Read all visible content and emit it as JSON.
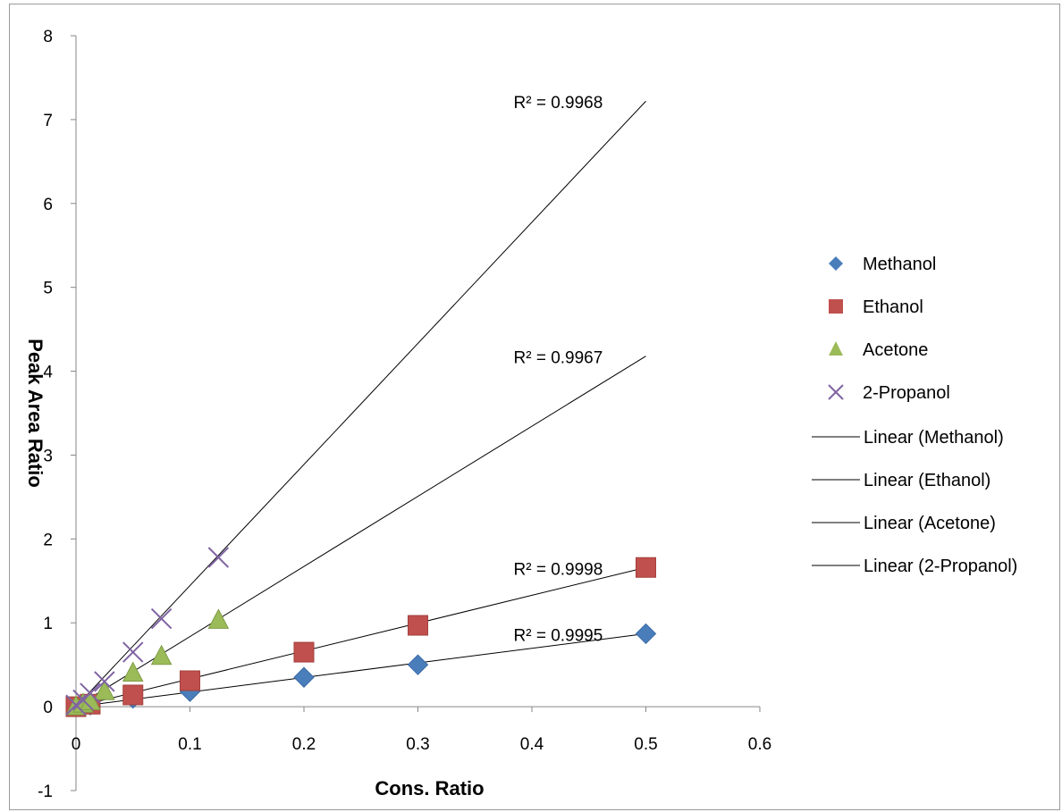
{
  "chart_data": {
    "type": "scatter",
    "xlabel": "Cons. Ratio",
    "ylabel": "Peak Area Ratio",
    "xlim": [
      0,
      0.6
    ],
    "ylim": [
      -1,
      8
    ],
    "x_ticks": [
      "0",
      "0.1",
      "0.2",
      "0.3",
      "0.4",
      "0.5",
      "0.6"
    ],
    "y_ticks": [
      "-1",
      "0",
      "1",
      "2",
      "3",
      "4",
      "5",
      "6",
      "7",
      "8"
    ],
    "grid": false,
    "legend_position": "right",
    "series": [
      {
        "name": "Methanol",
        "marker": "diamond",
        "color": "#4a7ebb",
        "x": [
          0,
          0.0125,
          0.05,
          0.1,
          0.2,
          0.3,
          0.5
        ],
        "y": [
          0,
          0.02,
          0.1,
          0.18,
          0.35,
          0.5,
          0.87
        ],
        "trendline": {
          "name": "Linear (Methanol)",
          "slope": 1.74,
          "intercept": 0,
          "x_end": 0.5,
          "r2": "R² = 0.9995"
        }
      },
      {
        "name": "Ethanol",
        "marker": "square",
        "color": "#c0504d",
        "x": [
          0,
          0.0125,
          0.05,
          0.1,
          0.2,
          0.3,
          0.5
        ],
        "y": [
          0,
          0.03,
          0.14,
          0.31,
          0.65,
          0.97,
          1.66
        ],
        "trendline": {
          "name": "Linear (Ethanol)",
          "slope": 3.32,
          "intercept": 0,
          "x_end": 0.5,
          "r2": "R² = 0.9998"
        }
      },
      {
        "name": "Acetone",
        "marker": "triangle",
        "color": "#9bbb59",
        "x": [
          0,
          0.00625,
          0.0125,
          0.025,
          0.05,
          0.075,
          0.125
        ],
        "y": [
          0,
          0.03,
          0.06,
          0.18,
          0.4,
          0.6,
          1.03
        ],
        "trendline": {
          "name": "Linear (Acetone)",
          "slope": 8.36,
          "intercept": 0,
          "x_end": 0.5,
          "r2": "R² = 0.9967"
        }
      },
      {
        "name": "2-Propanol",
        "marker": "x",
        "color": "#8064a2",
        "x": [
          0,
          0.00625,
          0.0125,
          0.025,
          0.05,
          0.075,
          0.125
        ],
        "y": [
          0.02,
          0.08,
          0.16,
          0.3,
          0.65,
          1.05,
          1.78
        ],
        "trendline": {
          "name": "Linear (2-Propanol)",
          "slope": 14.44,
          "intercept": 0,
          "x_end": 0.5,
          "r2": "R² = 0.9968"
        }
      }
    ]
  }
}
